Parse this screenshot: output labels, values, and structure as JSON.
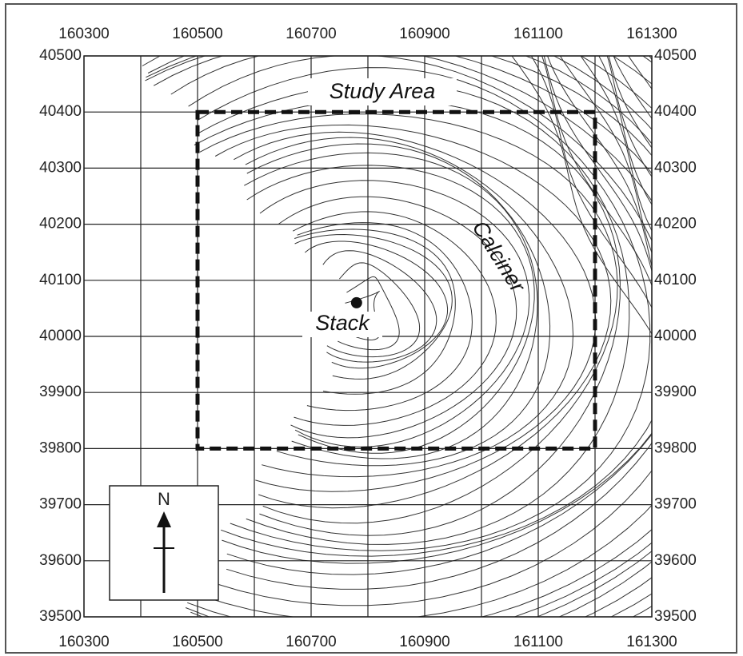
{
  "map": {
    "xlim": [
      160300,
      161300
    ],
    "ylim": [
      39500,
      40500
    ],
    "xticks": [
      160300,
      160500,
      160700,
      160900,
      161100,
      161300
    ],
    "xgrid": [
      160300,
      160400,
      160500,
      160600,
      160700,
      160800,
      160900,
      161000,
      161100,
      161200,
      161300
    ],
    "yticks": [
      39500,
      39600,
      39700,
      39800,
      39900,
      40000,
      40100,
      40200,
      40300,
      40400,
      40500
    ],
    "study_area": {
      "label": "Study Area",
      "xlim": [
        160500,
        161200
      ],
      "ylim": [
        39800,
        40400
      ]
    },
    "stack": {
      "label": "Stack",
      "x": 160780,
      "y": 40060
    },
    "calciner": {
      "label": "Calciner"
    },
    "north": "N"
  }
}
